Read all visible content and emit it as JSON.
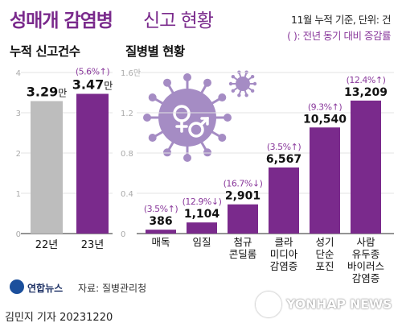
{
  "header": {
    "title_bold": "성매개 감염병",
    "title_light": "신고 현황",
    "note_basis": "11월 누적 기준, 단위: 건",
    "note_paren": "( ): 전년 동기 대비 증감률"
  },
  "footer": {
    "agency": "연합뉴스",
    "source": "자료: 질병관리청",
    "credit": "김민지 기자  20231220",
    "watermark": "YONHAP NEWS"
  },
  "colors": {
    "title": "#7a2a8c",
    "bar_light": "#bdbdbd",
    "bar_dark": "#7a2a8c",
    "virus": "#a58cc4"
  },
  "icons": [
    "virus-icon",
    "female-male-symbol-icon",
    "small-virus-icon",
    "yonhap-logo-icon"
  ],
  "chart_data": [
    {
      "type": "bar",
      "title": "누적 신고건수",
      "categories": [
        "22년",
        "23년"
      ],
      "values": [
        32900,
        34700
      ],
      "value_labels": [
        "3.29만",
        "3.47만"
      ],
      "change_labels": [
        "",
        "(5.6%↑)"
      ],
      "yticks": [
        "0",
        "1",
        "2",
        "3",
        "4"
      ],
      "ylim": [
        0,
        40000
      ],
      "grid": true
    },
    {
      "type": "bar",
      "title": "질병별 현황",
      "categories": [
        "매독",
        "임질",
        "첨규\n콘딜롬",
        "클라\n미디아\n감염증",
        "성기\n단순\n포진",
        "사람\n유두종\n바이러스\n감염증"
      ],
      "values": [
        386,
        1104,
        2901,
        6567,
        10540,
        13209
      ],
      "value_labels": [
        "386",
        "1,104",
        "2,901",
        "6,567",
        "10,540",
        "13,209"
      ],
      "change_labels": [
        "(3.5%↑)",
        "(12.9%↓)",
        "(16.7%↓)",
        "(3.5%↑)",
        "(9.3%↑)",
        "(12.4%↑)"
      ],
      "yticks": [
        "0",
        "0.4",
        "0.8",
        "1.2",
        "1.6만"
      ],
      "ylim": [
        0,
        16000
      ],
      "grid": true
    }
  ]
}
